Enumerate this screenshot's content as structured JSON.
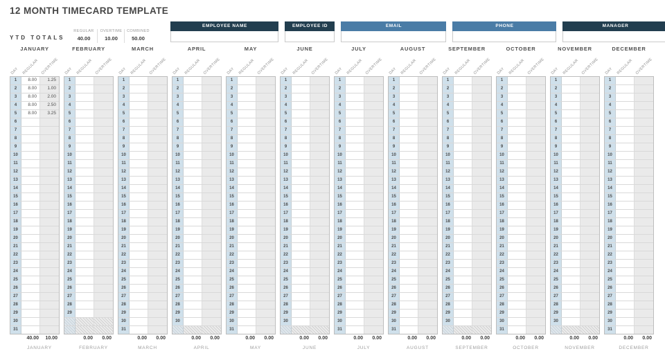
{
  "title": "12 MONTH TIMECARD TEMPLATE",
  "ytd": {
    "label": "YTD TOTALS",
    "columns": [
      {
        "label": "REGULAR",
        "value": "40.00"
      },
      {
        "label": "OVERTIME",
        "value": "10.00"
      },
      {
        "label": "COMBINED",
        "value": "50.00"
      }
    ]
  },
  "fields": [
    {
      "label": "EMPLOYEE NAME",
      "value": "",
      "variant": "dark"
    },
    {
      "label": "EMPLOYEE ID",
      "value": "",
      "variant": "dark"
    },
    {
      "label": "EMAIL",
      "value": "",
      "variant": "blue"
    },
    {
      "label": "PHONE",
      "value": "",
      "variant": "blue"
    },
    {
      "label": "MANAGER",
      "value": "",
      "variant": "dark"
    }
  ],
  "column_headers": [
    "DAY",
    "REGULAR",
    "OVERTIME"
  ],
  "months": [
    {
      "name": "JANUARY",
      "days": 31,
      "entries": {
        "1": [
          "8.00",
          "1.25"
        ],
        "2": [
          "8.00",
          "1.00"
        ],
        "3": [
          "8.00",
          "2.00"
        ],
        "4": [
          "8.00",
          "2.50"
        ],
        "5": [
          "8.00",
          "3.25"
        ]
      },
      "totals": [
        "40.00",
        "10.00"
      ]
    },
    {
      "name": "FEBRUARY",
      "days": 29,
      "entries": {},
      "totals": [
        "0.00",
        "0.00"
      ]
    },
    {
      "name": "MARCH",
      "days": 31,
      "entries": {},
      "totals": [
        "0.00",
        "0.00"
      ]
    },
    {
      "name": "APRIL",
      "days": 30,
      "entries": {},
      "totals": [
        "0.00",
        "0.00"
      ]
    },
    {
      "name": "MAY",
      "days": 31,
      "entries": {},
      "totals": [
        "0.00",
        "0.00"
      ]
    },
    {
      "name": "JUNE",
      "days": 30,
      "entries": {},
      "totals": [
        "0.00",
        "0.00"
      ]
    },
    {
      "name": "JULY",
      "days": 31,
      "entries": {},
      "totals": [
        "0.00",
        "0.00"
      ]
    },
    {
      "name": "AUGUST",
      "days": 31,
      "entries": {},
      "totals": [
        "0.00",
        "0.00"
      ]
    },
    {
      "name": "SEPTEMBER",
      "days": 30,
      "entries": {},
      "totals": [
        "0.00",
        "0.00"
      ]
    },
    {
      "name": "OCTOBER",
      "days": 31,
      "entries": {},
      "totals": [
        "0.00",
        "0.00"
      ]
    },
    {
      "name": "NOVEMBER",
      "days": 30,
      "entries": {},
      "totals": [
        "0.00",
        "0.00"
      ]
    },
    {
      "name": "DECEMBER",
      "days": 31,
      "entries": {},
      "totals": [
        "0.00",
        "0.00"
      ]
    }
  ],
  "colors": {
    "field_header_dark": "#223e4f",
    "field_header_blue": "#4a7ca6",
    "day_column_fill": "#cfe0eb",
    "overtime_column_fill": "#eaeaea"
  }
}
